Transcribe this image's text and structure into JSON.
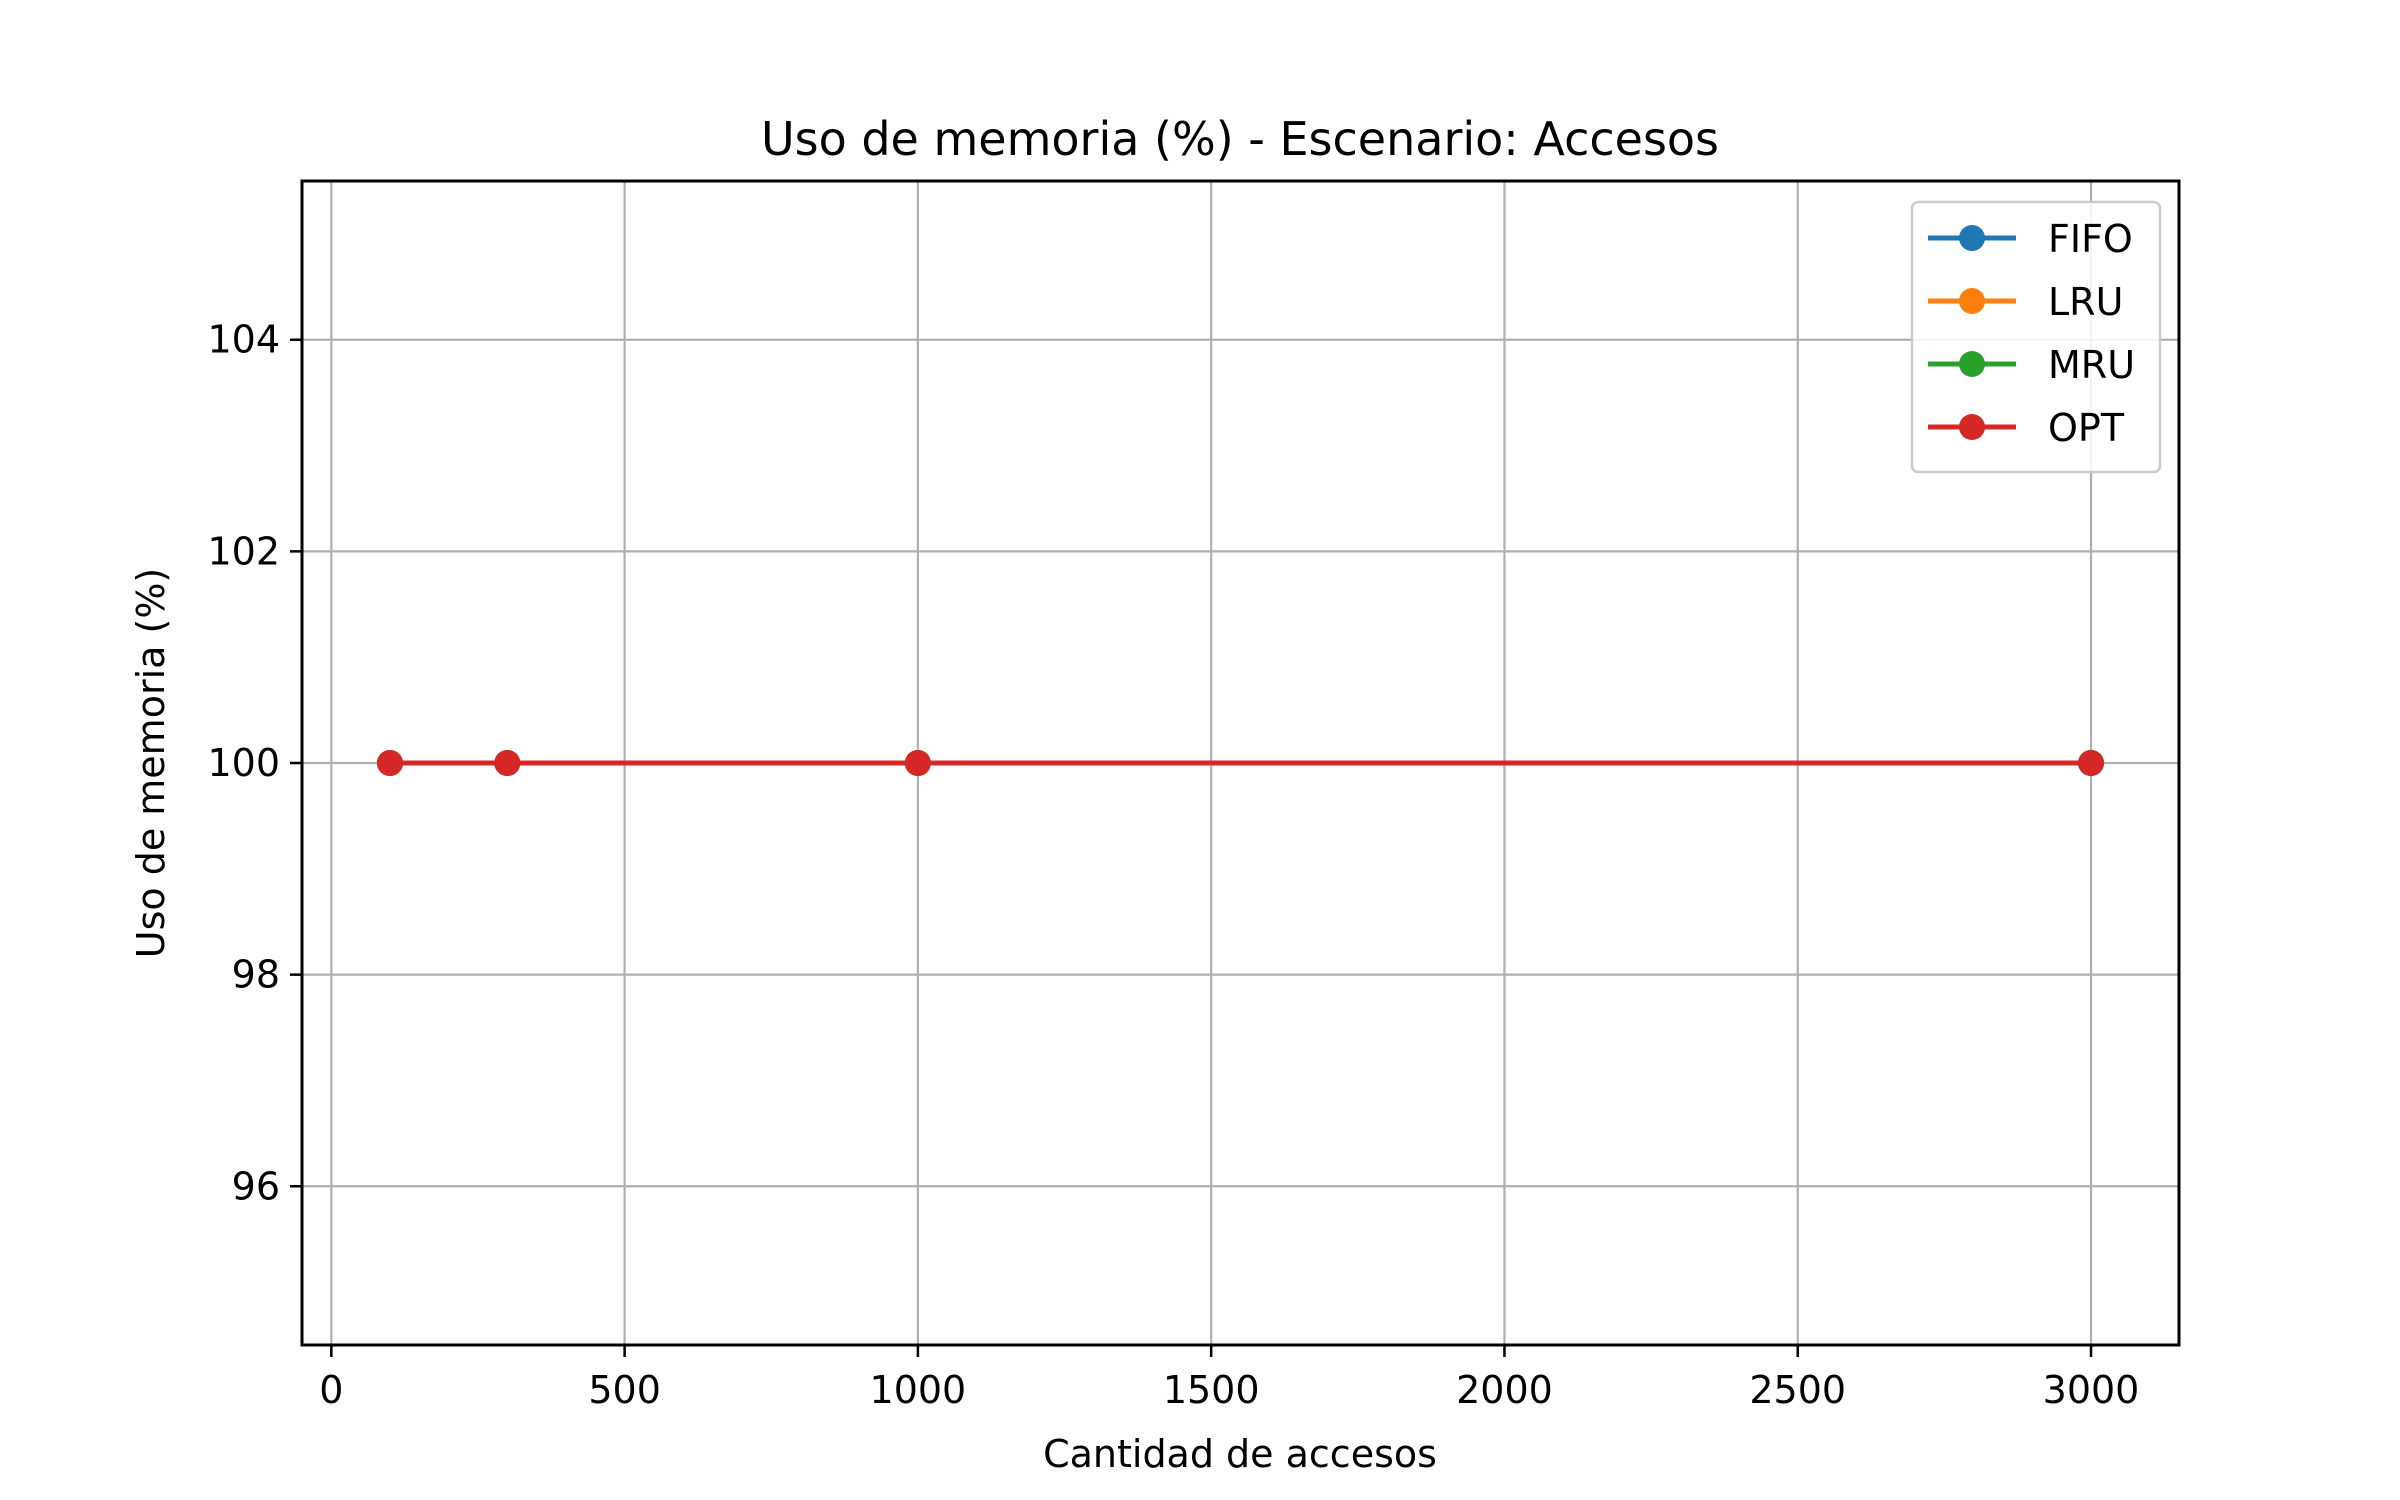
{
  "chart_data": {
    "type": "line",
    "title": "Uso de memoria (%) - Escenario: Accesos",
    "xlabel": "Cantidad de accesos",
    "ylabel": "Uso de memoria (%)",
    "xlim": [
      -50,
      3150
    ],
    "ylim": [
      94.5,
      105.5
    ],
    "x_ticks": [
      0,
      500,
      1000,
      1500,
      2000,
      2500,
      3000
    ],
    "y_ticks": [
      96,
      98,
      100,
      102,
      104
    ],
    "grid": true,
    "legend_position": "top-right",
    "x": [
      100,
      300,
      1000,
      3000
    ],
    "series": [
      {
        "name": "FIFO",
        "color": "#1f77b4",
        "marker": "circle",
        "values": [
          100,
          100,
          100,
          100
        ]
      },
      {
        "name": "LRU",
        "color": "#ff7f0e",
        "marker": "circle",
        "values": [
          100,
          100,
          100,
          100
        ]
      },
      {
        "name": "MRU",
        "color": "#2ca02c",
        "marker": "circle",
        "values": [
          100,
          100,
          100,
          100
        ]
      },
      {
        "name": "OPT",
        "color": "#d62728",
        "marker": "circle",
        "values": [
          100,
          100,
          100,
          100
        ]
      }
    ]
  }
}
